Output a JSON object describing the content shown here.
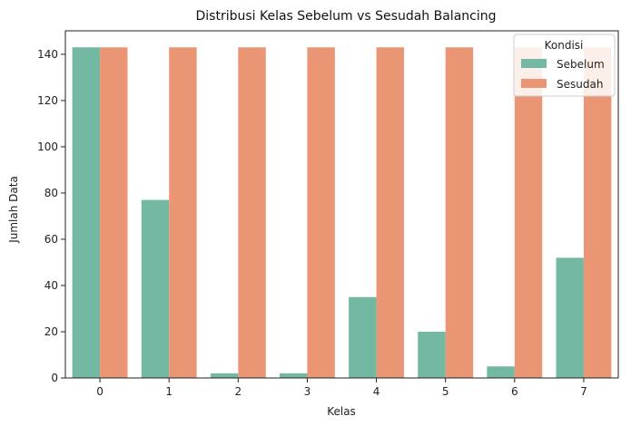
{
  "chart_data": {
    "type": "bar",
    "title": "Distribusi Kelas Sebelum vs Sesudah Balancing",
    "xlabel": "Kelas",
    "ylabel": "Jumlah Data",
    "categories": [
      "0",
      "1",
      "2",
      "3",
      "4",
      "5",
      "6",
      "7"
    ],
    "series": [
      {
        "name": "Sebelum",
        "color": "#72b8a2",
        "values": [
          143,
          77,
          2,
          2,
          35,
          20,
          5,
          52
        ]
      },
      {
        "name": "Sesudah",
        "color": "#ea9674",
        "values": [
          143,
          143,
          143,
          143,
          143,
          143,
          143,
          143
        ]
      }
    ],
    "ylim": [
      0,
      150.15
    ],
    "yticks": [
      0,
      20,
      40,
      60,
      80,
      100,
      120,
      140
    ],
    "legend": {
      "title": "Kondisi",
      "placement": "top-right"
    },
    "grid": false
  }
}
